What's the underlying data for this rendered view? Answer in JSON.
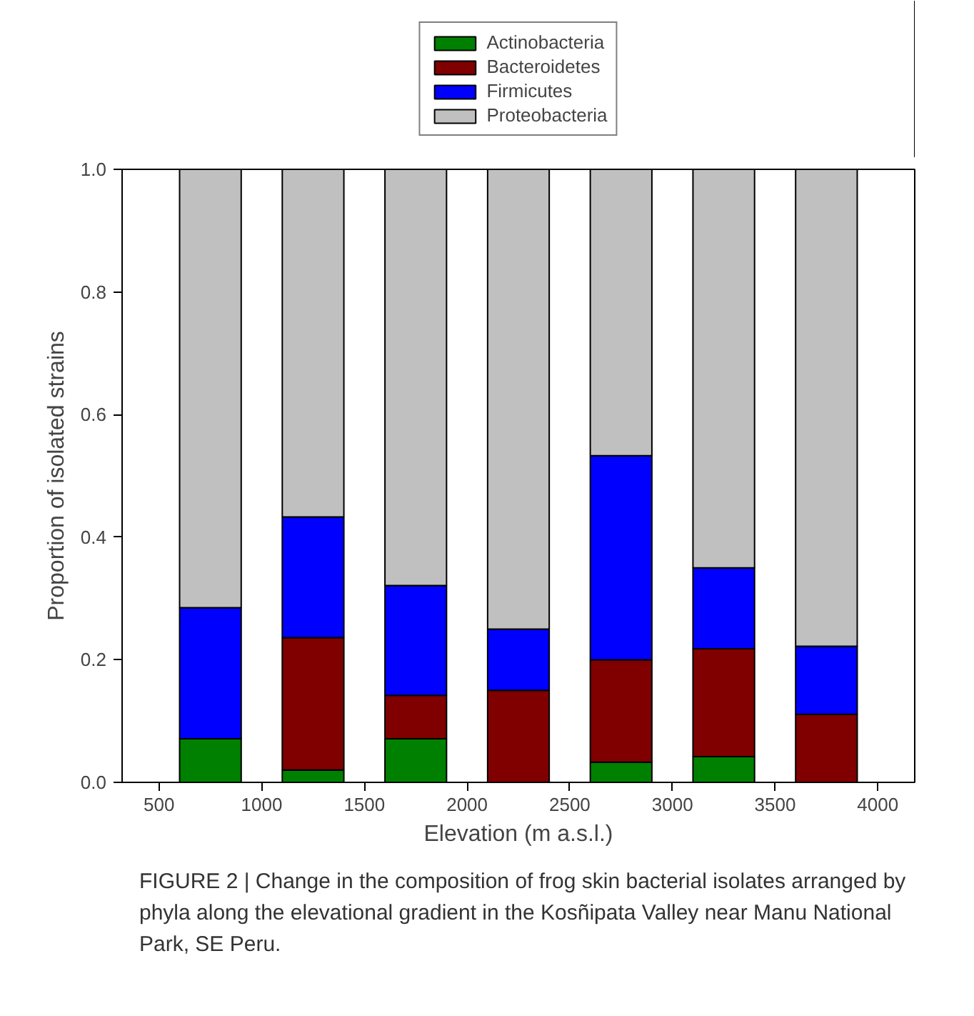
{
  "chart_data": {
    "type": "bar",
    "stacked": true,
    "xlabel": "Elevation (m a.s.l.)",
    "ylabel": "Proportion of isolated strains",
    "x": [
      750,
      1250,
      1750,
      2250,
      2750,
      3250,
      3750
    ],
    "series": [
      {
        "name": "Actinobacteria",
        "color": "#008000",
        "values": [
          0.071,
          0.02,
          0.071,
          0,
          0.033,
          0.042,
          0
        ]
      },
      {
        "name": "Bacteroidetes",
        "color": "#800000",
        "values": [
          0,
          0.216,
          0.071,
          0.15,
          0.167,
          0.176,
          0.111
        ]
      },
      {
        "name": "Firmicutes",
        "color": "#0000ff",
        "values": [
          0.214,
          0.197,
          0.179,
          0.1,
          0.333,
          0.132,
          0.111
        ]
      },
      {
        "name": "Proteobacteria",
        "color": "#c0c0c0",
        "values": [
          0.715,
          0.567,
          0.679,
          0.75,
          0.467,
          0.65,
          0.778
        ]
      }
    ],
    "xlim": [
      320,
      4180
    ],
    "xticks": [
      500,
      1000,
      1500,
      2000,
      2500,
      3000,
      3500,
      4000
    ],
    "ylim": [
      0,
      1
    ],
    "yticks": [
      {
        "value": 0,
        "label": "0.0"
      },
      0.2,
      0.4,
      0.6,
      0.8,
      {
        "value": 1,
        "label": "1.0"
      }
    ],
    "grid": false,
    "legend": "top",
    "annotations": [
      "FIGURE 2 | Change in the composition of frog skin bacterial isolates arranged by phyla along the elevational gradient in the Kosñipata Valley near Manu National Park, SE Peru."
    ]
  }
}
